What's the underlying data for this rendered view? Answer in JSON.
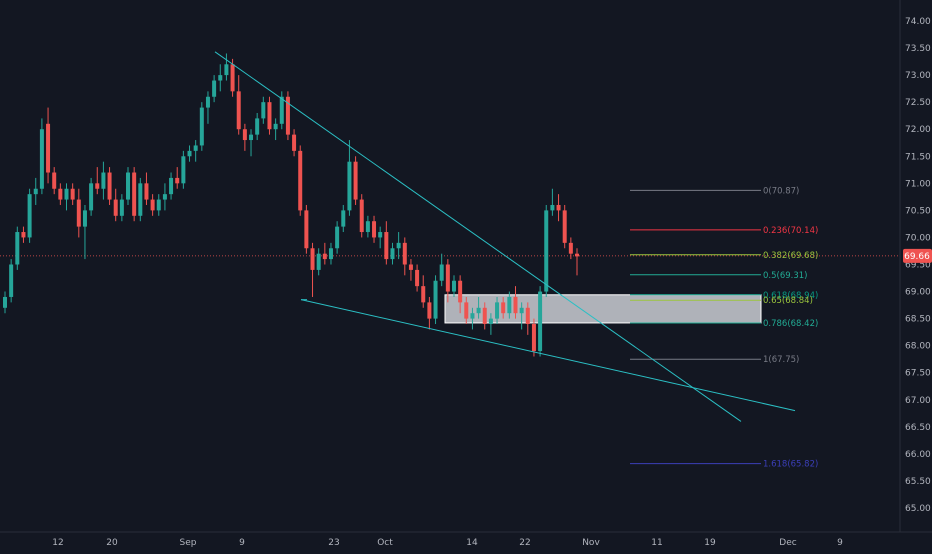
{
  "chart_data": {
    "type": "candlestick",
    "instrument_price_label": "69.66",
    "y_axis": {
      "range": [
        64.7,
        74.4
      ],
      "ticks": [
        "74.00",
        "73.50",
        "73.00",
        "72.50",
        "72.00",
        "71.50",
        "71.00",
        "70.50",
        "70.00",
        "69.50",
        "69.00",
        "68.50",
        "68.00",
        "67.50",
        "67.00",
        "66.50",
        "66.00",
        "65.50",
        "65.00"
      ]
    },
    "x_axis": {
      "tick_labels": [
        "12",
        "20",
        "Sep",
        "9",
        "23",
        "Oct",
        "14",
        "22",
        "Nov",
        "11",
        "19",
        "Dec",
        "9"
      ]
    },
    "last_price": 69.66,
    "candles": [
      [
        68.7,
        69.0,
        68.6,
        68.9
      ],
      [
        68.9,
        69.6,
        68.8,
        69.5
      ],
      [
        69.5,
        70.2,
        69.4,
        70.1
      ],
      [
        70.1,
        70.2,
        69.9,
        70.0
      ],
      [
        70.0,
        70.9,
        69.9,
        70.8
      ],
      [
        70.8,
        71.1,
        70.6,
        70.9
      ],
      [
        70.9,
        72.2,
        70.8,
        72.0
      ],
      [
        72.1,
        72.4,
        71.0,
        71.2
      ],
      [
        71.2,
        71.3,
        70.8,
        70.9
      ],
      [
        70.9,
        71.0,
        70.6,
        70.7
      ],
      [
        70.7,
        71.0,
        70.5,
        70.9
      ],
      [
        70.9,
        71.0,
        70.6,
        70.7
      ],
      [
        70.7,
        70.9,
        70.0,
        70.2
      ],
      [
        70.2,
        70.6,
        69.6,
        70.5
      ],
      [
        70.5,
        71.1,
        70.4,
        71.0
      ],
      [
        71.0,
        71.3,
        70.8,
        70.9
      ],
      [
        70.9,
        71.4,
        70.7,
        71.2
      ],
      [
        71.2,
        71.3,
        70.6,
        70.7
      ],
      [
        70.7,
        70.9,
        70.3,
        70.4
      ],
      [
        70.4,
        70.8,
        70.3,
        70.7
      ],
      [
        70.7,
        71.3,
        70.6,
        71.2
      ],
      [
        71.2,
        71.3,
        70.3,
        70.4
      ],
      [
        70.4,
        71.1,
        70.3,
        71.0
      ],
      [
        71.0,
        71.2,
        70.6,
        70.7
      ],
      [
        70.7,
        70.8,
        70.4,
        70.5
      ],
      [
        70.5,
        70.8,
        70.4,
        70.7
      ],
      [
        70.7,
        71.0,
        70.5,
        70.8
      ],
      [
        70.8,
        71.2,
        70.7,
        71.1
      ],
      [
        71.1,
        71.3,
        70.9,
        71.0
      ],
      [
        71.0,
        71.6,
        70.9,
        71.5
      ],
      [
        71.5,
        71.7,
        71.4,
        71.6
      ],
      [
        71.6,
        71.8,
        71.4,
        71.7
      ],
      [
        71.7,
        72.5,
        71.6,
        72.4
      ],
      [
        72.4,
        72.7,
        72.1,
        72.6
      ],
      [
        72.6,
        73.0,
        72.5,
        72.9
      ],
      [
        72.9,
        73.2,
        72.7,
        73.0
      ],
      [
        73.0,
        73.4,
        72.9,
        73.2
      ],
      [
        73.2,
        73.3,
        72.6,
        72.7
      ],
      [
        72.7,
        73.0,
        71.9,
        72.0
      ],
      [
        72.0,
        72.1,
        71.6,
        71.8
      ],
      [
        71.8,
        72.0,
        71.5,
        71.9
      ],
      [
        71.9,
        72.3,
        71.8,
        72.2
      ],
      [
        72.2,
        72.6,
        72.1,
        72.5
      ],
      [
        72.5,
        72.6,
        71.9,
        72.0
      ],
      [
        72.0,
        72.2,
        71.8,
        72.1
      ],
      [
        72.1,
        72.7,
        72.0,
        72.6
      ],
      [
        72.6,
        72.7,
        71.8,
        71.9
      ],
      [
        71.9,
        72.0,
        71.5,
        71.6
      ],
      [
        71.6,
        71.7,
        70.4,
        70.5
      ],
      [
        70.5,
        70.6,
        69.7,
        69.8
      ],
      [
        69.8,
        69.9,
        68.9,
        69.4
      ],
      [
        69.4,
        69.8,
        69.3,
        69.7
      ],
      [
        69.7,
        69.9,
        69.5,
        69.6
      ],
      [
        69.6,
        69.9,
        69.5,
        69.8
      ],
      [
        69.8,
        70.3,
        69.7,
        70.2
      ],
      [
        70.2,
        70.6,
        70.1,
        70.5
      ],
      [
        70.5,
        71.8,
        70.4,
        71.4
      ],
      [
        71.4,
        71.5,
        70.6,
        70.7
      ],
      [
        70.7,
        70.8,
        70.0,
        70.1
      ],
      [
        70.1,
        70.4,
        70.0,
        70.3
      ],
      [
        70.3,
        70.4,
        69.9,
        70.0
      ],
      [
        70.0,
        70.2,
        69.8,
        70.1
      ],
      [
        70.1,
        70.3,
        69.5,
        69.6
      ],
      [
        69.6,
        69.9,
        69.5,
        69.8
      ],
      [
        69.8,
        70.1,
        69.6,
        69.9
      ],
      [
        69.9,
        70.0,
        69.3,
        69.5
      ],
      [
        69.5,
        69.6,
        69.2,
        69.4
      ],
      [
        69.4,
        69.5,
        69.0,
        69.1
      ],
      [
        69.1,
        69.3,
        68.7,
        68.8
      ],
      [
        68.8,
        68.9,
        68.3,
        68.5
      ],
      [
        68.5,
        69.3,
        68.4,
        69.2
      ],
      [
        69.2,
        69.7,
        69.1,
        69.5
      ],
      [
        69.5,
        69.6,
        68.8,
        69.0
      ],
      [
        69.0,
        69.3,
        68.9,
        69.2
      ],
      [
        69.2,
        69.3,
        68.6,
        68.8
      ],
      [
        68.8,
        68.9,
        68.4,
        68.5
      ],
      [
        68.5,
        68.7,
        68.3,
        68.6
      ],
      [
        68.6,
        68.9,
        68.5,
        68.7
      ],
      [
        68.7,
        68.8,
        68.3,
        68.4
      ],
      [
        68.4,
        68.6,
        68.2,
        68.5
      ],
      [
        68.5,
        68.9,
        68.4,
        68.8
      ],
      [
        68.8,
        68.9,
        68.5,
        68.6
      ],
      [
        68.6,
        69.0,
        68.5,
        68.9
      ],
      [
        68.9,
        69.1,
        68.5,
        68.6
      ],
      [
        68.6,
        68.8,
        68.3,
        68.7
      ],
      [
        68.7,
        68.8,
        68.2,
        68.4
      ],
      [
        68.4,
        68.5,
        67.8,
        67.9
      ],
      [
        67.9,
        69.1,
        67.8,
        69.0
      ],
      [
        69.0,
        70.6,
        68.9,
        70.5
      ],
      [
        70.5,
        70.9,
        70.4,
        70.6
      ],
      [
        70.6,
        70.8,
        70.3,
        70.5
      ],
      [
        70.5,
        70.6,
        69.8,
        69.9
      ],
      [
        69.9,
        70.0,
        69.6,
        69.7
      ],
      [
        69.7,
        69.8,
        69.3,
        69.65
      ]
    ],
    "fibonacci_levels": [
      {
        "ratio": "0",
        "price": "70.87",
        "label": "0(70.87)",
        "color": "#787b86"
      },
      {
        "ratio": "0.236",
        "price": "70.14",
        "label": "0.236(70.14)",
        "color": "#f23645"
      },
      {
        "ratio": "0.382",
        "price": "69.68",
        "label": "0.382(69.68)",
        "color": "#9bc53d"
      },
      {
        "ratio": "0.5",
        "price": "69.31",
        "label": "0.5(69.31)",
        "color": "#22ab94"
      },
      {
        "ratio": "0.618",
        "price": "68.94",
        "label": "0.618(68.94)",
        "color": "#089981"
      },
      {
        "ratio": "0.65",
        "price": "68.84",
        "label": "0.65(68.84)",
        "color": "#9bc53d"
      },
      {
        "ratio": "0.786",
        "price": "68.42",
        "label": "0.786(68.42)",
        "color": "#22ab94"
      },
      {
        "ratio": "1",
        "price": "67.75",
        "label": "1(67.75)",
        "color": "#787b86"
      },
      {
        "ratio": "1.618",
        "price": "65.82",
        "label": "1.618(65.82)",
        "color": "#3b3fb8"
      }
    ],
    "zone_box": {
      "price_top": 68.94,
      "price_bottom": 68.42
    },
    "trendlines": [
      {
        "name": "upper-trendline",
        "points": [
          [
            73.43
          ],
          [
            66.6
          ]
        ]
      },
      {
        "name": "lower-trendline",
        "points": [
          [
            68.85
          ],
          [
            66.8
          ]
        ]
      }
    ],
    "colors": {
      "background": "#131722",
      "up": "#26a69a",
      "down": "#ef5350",
      "trendline": "#2bbfc4",
      "last_price_line": "#ef5350",
      "axis_text": "#b2b5be"
    }
  }
}
